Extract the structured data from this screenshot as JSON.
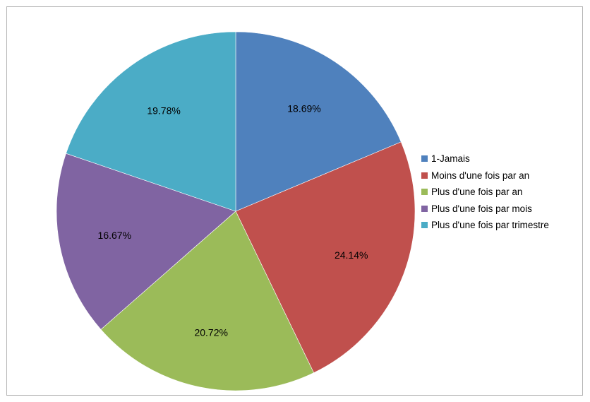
{
  "chart_data": {
    "type": "pie",
    "title": "",
    "start_angle_deg": 0,
    "direction": "clockwise",
    "legend_position": "right",
    "slices": [
      {
        "label": "1-Jamais",
        "value": 18.69,
        "display": "18.69%",
        "color": "#4F81BD"
      },
      {
        "label": "Moins d'une fois par an",
        "value": 24.14,
        "display": "24.14%",
        "color": "#C0504D"
      },
      {
        "label": "Plus d'une fois par an",
        "value": 20.72,
        "display": "20.72%",
        "color": "#9BBB59"
      },
      {
        "label": "Plus d'une fois par mois",
        "value": 16.67,
        "display": "16.67%",
        "color": "#8064A2"
      },
      {
        "label": "Plus d'une fois par trimestre",
        "value": 19.78,
        "display": "19.78%",
        "color": "#4BACC6"
      }
    ]
  }
}
